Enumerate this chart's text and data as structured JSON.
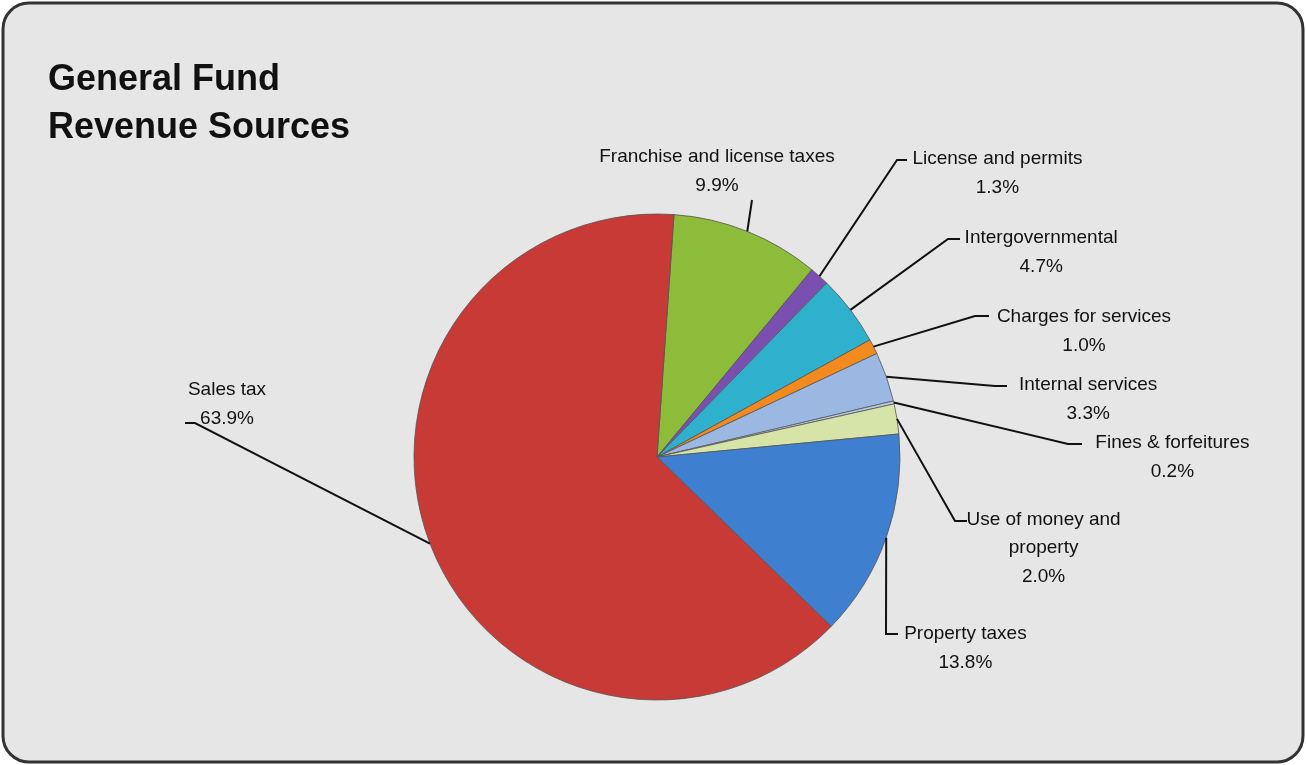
{
  "chart_data": {
    "type": "pie",
    "title": "General Fund Revenue Sources",
    "categories": [
      "Franchise and license taxes",
      "License and permits",
      "Intergovernmental",
      "Charges for services",
      "Internal services",
      "Fines & forfeitures",
      "Use of money and property",
      "Property taxes",
      "Sales tax"
    ],
    "values": [
      9.9,
      1.3,
      4.7,
      1.0,
      3.3,
      0.2,
      2.0,
      13.8,
      63.9
    ],
    "value_labels": [
      "9.9%",
      "1.3%",
      "4.7%",
      "1.0%",
      "3.3%",
      "0.2%",
      "2.0%",
      "13.8%",
      "63.9%"
    ],
    "colors": [
      "#8dbb3a",
      "#7b4fb0",
      "#2fb0cc",
      "#f28a1e",
      "#9bb8e2",
      "#b8cce4",
      "#d6e4a8",
      "#3f7fcf",
      "#c83a36"
    ]
  }
}
